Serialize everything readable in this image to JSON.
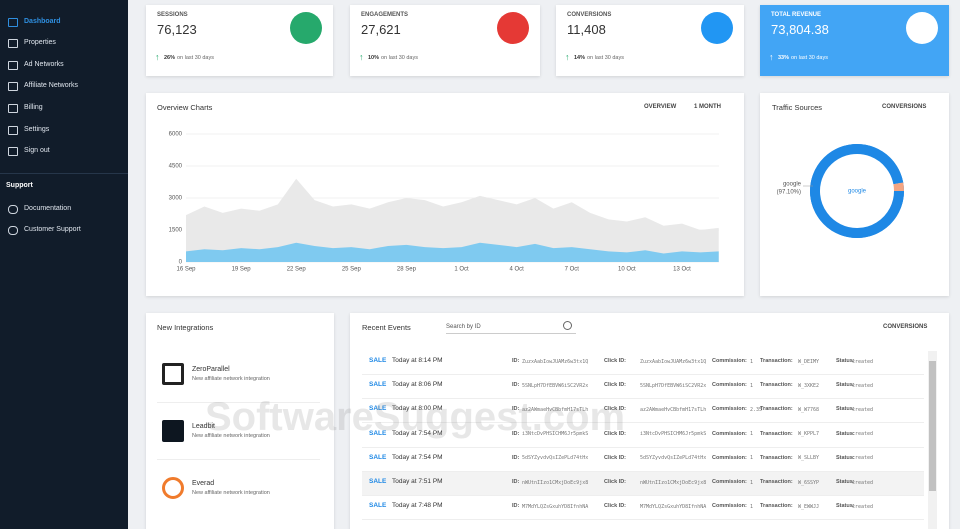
{
  "sidebar": {
    "items": [
      "Dashboard",
      "Properties",
      "Ad Networks",
      "Affiliate Networks",
      "Billing",
      "Settings",
      "Sign out"
    ],
    "section": "Support",
    "support_items": [
      "Documentation",
      "Customer Support"
    ]
  },
  "stats": [
    {
      "label": "SESSIONS",
      "value": "76,123",
      "change": "26%",
      "note": "on last 30 days"
    },
    {
      "label": "ENGAGEMENTS",
      "value": "27,621",
      "change": "10%",
      "note": "on last 30 days"
    },
    {
      "label": "CONVERSIONS",
      "value": "11,408",
      "change": "14%",
      "note": "on last 30 days"
    },
    {
      "label": "TOTAL REVENUE",
      "value": "73,804.38",
      "change": "33%",
      "note": "on last 30 days"
    }
  ],
  "overview": {
    "title": "Overview Charts",
    "menus": [
      "OVERVIEW",
      "1 MONTH"
    ],
    "chart_data": {
      "type": "area",
      "categories": [
        "16 Sep",
        null,
        null,
        "19 Sep",
        null,
        null,
        "22 Sep",
        null,
        null,
        "25 Sep",
        null,
        null,
        "28 Sep",
        null,
        null,
        "1 Oct",
        null,
        null,
        "4 Oct",
        null,
        null,
        "7 Oct",
        null,
        null,
        "10 Oct",
        null,
        null,
        "13 Oct",
        null,
        null
      ],
      "series": [
        {
          "color": "#e9e9e9",
          "values": [
            2200,
            2600,
            2300,
            2500,
            2400,
            2700,
            3900,
            2900,
            2600,
            2700,
            2500,
            2800,
            3000,
            2900,
            2600,
            2800,
            3100,
            2900,
            2700,
            3000,
            2500,
            2800,
            2300,
            2000,
            1900,
            2100,
            1700,
            1800,
            1500,
            1600
          ]
        },
        {
          "color": "#7fcaf0",
          "values": [
            500,
            600,
            550,
            650,
            600,
            700,
            900,
            750,
            650,
            700,
            600,
            750,
            800,
            700,
            650,
            700,
            900,
            800,
            700,
            850,
            650,
            700,
            600,
            500,
            450,
            550,
            400,
            500,
            450,
            500
          ]
        }
      ],
      "ylim": [
        0,
        6000
      ],
      "yticks": [
        0,
        1500,
        3000,
        4500,
        6000
      ],
      "grid": true
    }
  },
  "traffic": {
    "title": "Traffic Sources",
    "menu": "CONVERSIONS",
    "chart_data": {
      "type": "donut",
      "categories": [
        "google",
        null
      ],
      "values": [
        97.1,
        2.9
      ],
      "value_labels": [
        "(97.10%)",
        null
      ],
      "colors": [
        "#1e88e5",
        "#f4a582"
      ]
    }
  },
  "integrations": {
    "title": "New Integrations",
    "items": [
      {
        "name": "ZeroParallel",
        "desc": "New affiliate network integration"
      },
      {
        "name": "Leadbit",
        "desc": "New affiliate network integration"
      },
      {
        "name": "Everad",
        "desc": "New affiliate network integration"
      }
    ]
  },
  "events": {
    "title": "Recent Events",
    "search": "Search by ID",
    "menu": "CONVERSIONS",
    "fields": {
      "id": "ID:",
      "click_id": "Click ID:",
      "commission": "Commission:",
      "transaction": "Transaction:",
      "status": "Status:"
    },
    "rows": [
      {
        "type": "SALE",
        "time": "Today at 8:14 PM",
        "id": "ZuzxAabIowJUAMz6w3tx1Q",
        "click_id": "ZuzxAabIowJUAMz6w3tx1Q",
        "commission": "1",
        "transaction": "W_DEIMY",
        "status": "created"
      },
      {
        "type": "SALE",
        "time": "Today at 8:06 PM",
        "id": "5SNLpH7DfEBVW6iSC2VR2x",
        "click_id": "5SNLpH7DfEBVW6iSC2VR2x",
        "commission": "1",
        "transaction": "W_3XKE2",
        "status": "created"
      },
      {
        "type": "SALE",
        "time": "Today at 8:00 PM",
        "id": "az2AWmaeHvCBbfmH17sTLh",
        "click_id": "az2AWmaeHvCBbfmH17sTLh",
        "commission": "2.35",
        "transaction": "W_W7768",
        "status": "created"
      },
      {
        "type": "SALE",
        "time": "Today at 7:54 PM",
        "id": "i3NtcDvPHSICHM6Jr5pmkS",
        "click_id": "i3NtcDvPHSICHM6Jr5pmkS",
        "commission": "1",
        "transaction": "W_KPPL7",
        "status": "created"
      },
      {
        "type": "SALE",
        "time": "Today at 7:54 PM",
        "id": "5dSYZyvdvQsIZePLd74tHx",
        "click_id": "5dSYZyvdvQsIZePLd74tHx",
        "commission": "1",
        "transaction": "W_SLLBY",
        "status": "created"
      },
      {
        "type": "SALE",
        "time": "Today at 7:51 PM",
        "id": "nWUtnIIzo1CMxjDoEc9jx8",
        "click_id": "nWUtnIIzo1CMxjDoEc9jx8",
        "commission": "1",
        "transaction": "W_6SSYP",
        "status": "created"
      },
      {
        "type": "SALE",
        "time": "Today at 7:48 PM",
        "id": "M7MdYLQZsGxuhYD8IfnhNA",
        "click_id": "M7MdYLQZsGxuhYD8IfnhNA",
        "commission": "1",
        "transaction": "W_EWWJJ",
        "status": "created"
      }
    ]
  },
  "watermark": "SoftwareSuggest.com"
}
